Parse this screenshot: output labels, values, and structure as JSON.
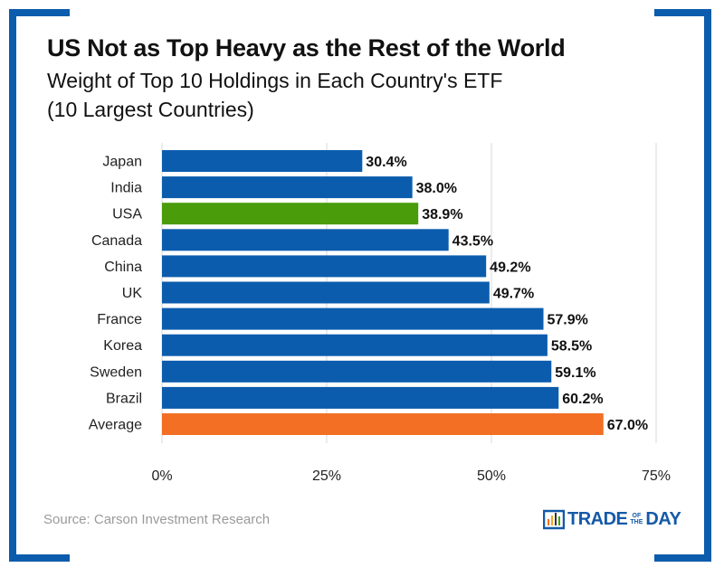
{
  "chart_data": {
    "type": "bar",
    "orientation": "horizontal",
    "title": "US Not as Top Heavy as the Rest of the World",
    "subtitle": [
      "Weight of Top 10 Holdings in Each Country's ETF",
      "(10 Largest Countries)"
    ],
    "categories": [
      "Japan",
      "India",
      "USA",
      "Canada",
      "China",
      "UK",
      "France",
      "Korea",
      "Sweden",
      "Brazil",
      "Average"
    ],
    "values": [
      30.4,
      38.0,
      38.9,
      43.5,
      49.2,
      49.7,
      57.9,
      58.5,
      59.1,
      60.2,
      67.0
    ],
    "data_labels": [
      "30.4%",
      "38.0%",
      "38.9%",
      "43.5%",
      "49.2%",
      "49.7%",
      "57.9%",
      "58.5%",
      "59.1%",
      "60.2%",
      "67.0%"
    ],
    "xlim": [
      0,
      75
    ],
    "xticks": [
      0,
      25,
      50,
      75
    ],
    "xtick_labels": [
      "0%",
      "25%",
      "50%",
      "75%"
    ],
    "xlabel": "",
    "ylabel": "",
    "grid": true,
    "colors": {
      "default": "#0b5cad",
      "USA": "#4a9c0b",
      "Average": "#f26f24"
    }
  },
  "source": "Source: Carson Investment Research",
  "logo": {
    "text": "TRADE OF THE DAY",
    "main": "TRADE",
    "of": "OF",
    "the": "THE",
    "end": "DAY"
  }
}
